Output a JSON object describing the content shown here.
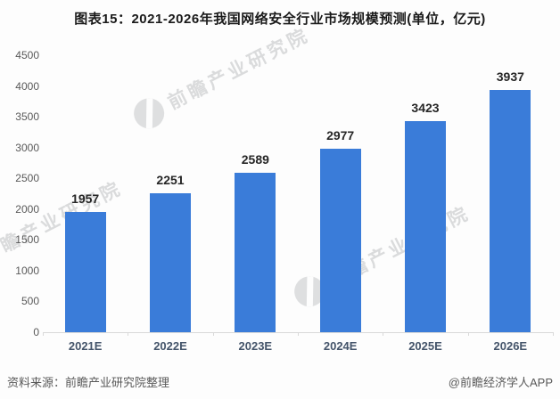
{
  "title": "图表15：2021-2026年我国网络安全行业市场规模预测(单位，亿元)",
  "chart_data": {
    "type": "bar",
    "title": "图表15：2021-2026年我国网络安全行业市场规模预测(单位，亿元)",
    "categories": [
      "2021E",
      "2022E",
      "2023E",
      "2024E",
      "2025E",
      "2026E"
    ],
    "values": [
      1957,
      2251,
      2589,
      2977,
      3423,
      3937
    ],
    "xlabel": "",
    "ylabel": "",
    "unit": "亿元",
    "ylim": [
      0,
      4500
    ],
    "yticks": [
      0,
      500,
      1000,
      1500,
      2000,
      2500,
      3000,
      3500,
      4000,
      4500
    ],
    "grid": false,
    "legend": null,
    "bar_color": "#3A7CD9"
  },
  "colors": {
    "bar": "#3A7CD9",
    "axis_label": "#595959",
    "category_label": "#44546A",
    "data_label": "#262626",
    "axis_line": "#d9d9d9"
  },
  "watermark": {
    "text": "前瞻产业研究院"
  },
  "footer": {
    "source": "资料来源：前瞻产业研究院整理",
    "credit": "@前瞻经济学人APP"
  }
}
